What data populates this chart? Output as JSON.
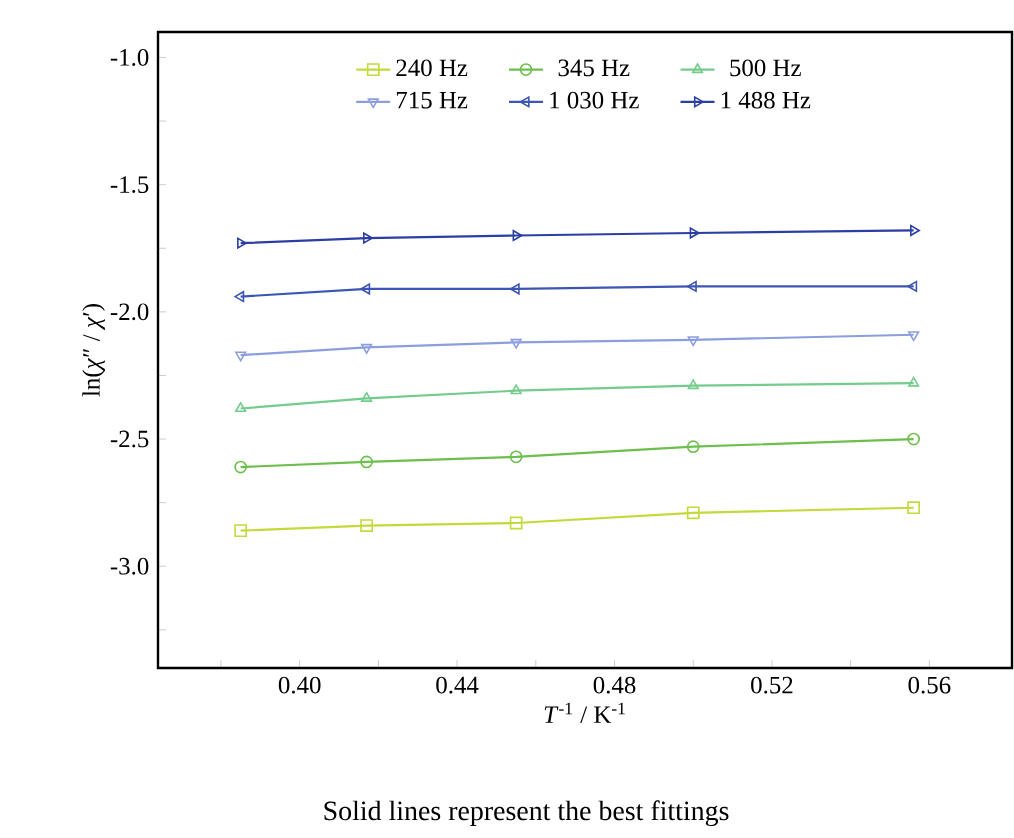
{
  "chart_data": {
    "type": "line",
    "xlabel": "*T*$^{-1}$ / K$^{-1}$",
    "ylabel": "ln(*χ*″ / *χ*′)",
    "annotations": [
      "Solid lines represent the best fittings"
    ],
    "x": [
      0.385,
      0.417,
      0.455,
      0.5,
      0.556
    ],
    "xlim": [
      0.364,
      0.581
    ],
    "ylim": [
      -3.4,
      -0.9
    ],
    "xticks": [
      {
        "value": 0.38,
        "label": null
      },
      {
        "value": 0.4,
        "label": "0.40"
      },
      {
        "value": 0.42,
        "label": null
      },
      {
        "value": 0.44,
        "label": "0.44"
      },
      {
        "value": 0.46,
        "label": null
      },
      {
        "value": 0.48,
        "label": "0.48"
      },
      {
        "value": 0.5,
        "label": null
      },
      {
        "value": 0.52,
        "label": "0.52"
      },
      {
        "value": 0.54,
        "label": null
      },
      {
        "value": 0.56,
        "label": "0.56"
      }
    ],
    "yticks": [
      {
        "value": -3.25,
        "label": null
      },
      {
        "value": -3.0,
        "label": "-3.0"
      },
      {
        "value": -2.75,
        "label": null
      },
      {
        "value": -2.5,
        "label": "-2.5"
      },
      {
        "value": -2.25,
        "label": null
      },
      {
        "value": -2.0,
        "label": "-2.0"
      },
      {
        "value": -1.75,
        "label": null
      },
      {
        "value": -1.5,
        "label": "-1.5"
      },
      {
        "value": -1.25,
        "label": null
      },
      {
        "value": -1.0,
        "label": "-1.0"
      }
    ],
    "legend": "top",
    "grid": false,
    "series": [
      {
        "name": "240 Hz",
        "color": "#c4d93a",
        "marker": "square",
        "values": [
          -2.86,
          -2.84,
          -2.83,
          -2.79,
          -2.77
        ]
      },
      {
        "name": "345 Hz",
        "color": "#6cbf4c",
        "marker": "circle",
        "values": [
          -2.61,
          -2.59,
          -2.57,
          -2.53,
          -2.5
        ]
      },
      {
        "name": "500 Hz",
        "color": "#74cc8c",
        "marker": "triangle",
        "values": [
          -2.38,
          -2.34,
          -2.31,
          -2.29,
          -2.28
        ]
      },
      {
        "name": "715 Hz",
        "color": "#8c9edf",
        "marker": "triangle-down",
        "values": [
          -2.17,
          -2.14,
          -2.12,
          -2.11,
          -2.09
        ]
      },
      {
        "name": "1 030 Hz",
        "color": "#3d55b3",
        "marker": "triangle-left",
        "values": [
          -1.94,
          -1.91,
          -1.91,
          -1.9,
          -1.9
        ]
      },
      {
        "name": "1 488 Hz",
        "color": "#2b3ea3",
        "marker": "triangle-right",
        "values": [
          -1.73,
          -1.71,
          -1.7,
          -1.69,
          -1.68
        ]
      }
    ]
  }
}
